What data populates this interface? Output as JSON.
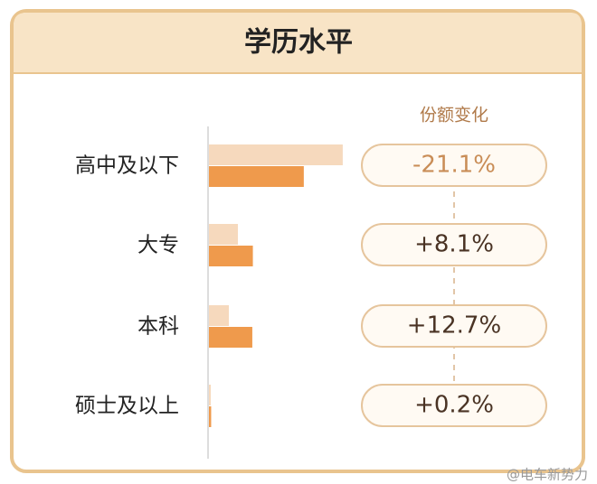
{
  "chart_data": {
    "type": "bar",
    "orientation": "horizontal",
    "title": "学历水平",
    "categories": [
      "高中及以下",
      "大专",
      "本科",
      "硕士及以上"
    ],
    "series": [
      {
        "color": "#f6d9bd",
        "values": [
          72.5,
          15.7,
          10.8,
          1.0
        ]
      },
      {
        "color": "#ef9a4c",
        "values": [
          51.4,
          23.8,
          23.5,
          1.2
        ]
      }
    ],
    "xlim": [
      0,
      75
    ],
    "change": {
      "title": "份额变化",
      "values": [
        -21.1,
        8.1,
        12.7,
        0.2
      ],
      "value_labels": [
        "-21.1%",
        "+8.1%",
        "+12.7%",
        "+0.2%"
      ]
    },
    "watermark": "@电车新势力"
  }
}
